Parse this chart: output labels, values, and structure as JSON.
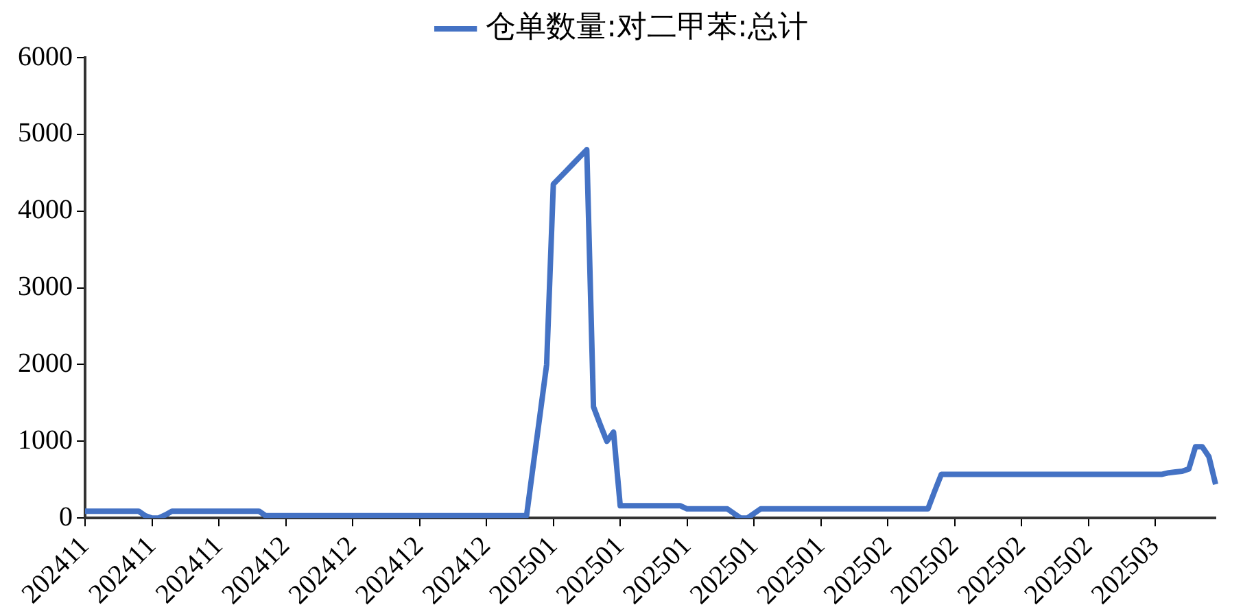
{
  "chart_data": {
    "type": "line",
    "categories": [
      "202411",
      null,
      null,
      null,
      null,
      null,
      null,
      null,
      null,
      null,
      "202411",
      null,
      null,
      null,
      null,
      null,
      null,
      null,
      null,
      null,
      "202411",
      null,
      null,
      null,
      null,
      null,
      null,
      null,
      null,
      null,
      "202412",
      null,
      null,
      null,
      null,
      null,
      null,
      null,
      null,
      null,
      "202412",
      null,
      null,
      null,
      null,
      null,
      null,
      null,
      null,
      null,
      "202412",
      null,
      null,
      null,
      null,
      null,
      null,
      null,
      null,
      null,
      "202412",
      null,
      null,
      null,
      null,
      null,
      null,
      null,
      null,
      null,
      "202501",
      null,
      null,
      null,
      null,
      null,
      null,
      null,
      null,
      null,
      "202501",
      null,
      null,
      null,
      null,
      null,
      null,
      null,
      null,
      null,
      "202501",
      null,
      null,
      null,
      null,
      null,
      null,
      null,
      null,
      null,
      "202501",
      null,
      null,
      null,
      null,
      null,
      null,
      null,
      null,
      null,
      "202501",
      null,
      null,
      null,
      null,
      null,
      null,
      null,
      null,
      null,
      "202502",
      null,
      null,
      null,
      null,
      null,
      null,
      null,
      null,
      null,
      "202502",
      null,
      null,
      null,
      null,
      null,
      null,
      null,
      null,
      null,
      "202502",
      null,
      null,
      null,
      null,
      null,
      null,
      null,
      null,
      null,
      "202502",
      null,
      null,
      null,
      null,
      null,
      null,
      null,
      null,
      null,
      "202503",
      null,
      null,
      null,
      null,
      null,
      null,
      null,
      null,
      null
    ],
    "series": [
      {
        "name": "仓单数量:对二甲苯:总计",
        "color": "#4472c4",
        "values": [
          90,
          90,
          90,
          90,
          90,
          90,
          90,
          90,
          90,
          30,
          0,
          0,
          40,
          90,
          90,
          90,
          90,
          90,
          90,
          90,
          90,
          90,
          90,
          90,
          90,
          90,
          90,
          30,
          30,
          30,
          30,
          30,
          30,
          30,
          30,
          30,
          30,
          30,
          30,
          30,
          30,
          30,
          30,
          30,
          30,
          30,
          30,
          30,
          30,
          30,
          30,
          30,
          30,
          30,
          30,
          30,
          30,
          30,
          30,
          30,
          30,
          30,
          30,
          30,
          30,
          30,
          30,
          690,
          1340,
          2000,
          4350,
          4440,
          4530,
          4620,
          4710,
          4800,
          1450,
          1220,
          1000,
          1120,
          160,
          160,
          160,
          160,
          160,
          160,
          160,
          160,
          160,
          160,
          120,
          120,
          120,
          120,
          120,
          120,
          120,
          60,
          0,
          0,
          60,
          120,
          120,
          120,
          120,
          120,
          120,
          120,
          120,
          120,
          120,
          120,
          120,
          120,
          120,
          120,
          120,
          120,
          120,
          120,
          120,
          120,
          120,
          120,
          120,
          120,
          120,
          350,
          570,
          570,
          570,
          570,
          570,
          570,
          570,
          570,
          570,
          570,
          570,
          570,
          570,
          570,
          570,
          570,
          570,
          570,
          570,
          570,
          570,
          570,
          570,
          570,
          570,
          570,
          570,
          570,
          570,
          570,
          570,
          570,
          570,
          570,
          590,
          600,
          610,
          640,
          930,
          930,
          800,
          440
        ]
      }
    ],
    "ylim": [
      0,
      6000
    ],
    "yticks": [
      0,
      1000,
      2000,
      3000,
      4000,
      5000,
      6000
    ],
    "grid": false,
    "legend": "top",
    "marker": "none",
    "line_style": "solid"
  }
}
